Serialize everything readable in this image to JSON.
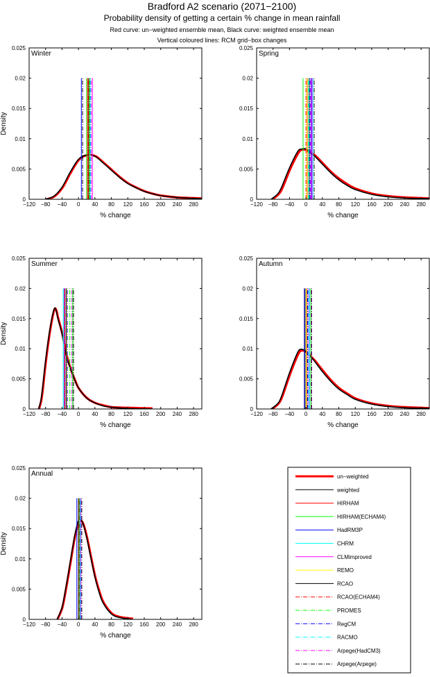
{
  "header": {
    "title": "Bradford A2 scenario (2071−2100)",
    "subtitle": "Probability density of getting a certain % change in mean rainfall",
    "note1": "Red curve: un−weighted ensemble mean, Black curve: weighted ensemble mean",
    "note2": "Vertical coloured lines: RCM grid−box changes"
  },
  "chart_data": {
    "type": "line",
    "xlabel": "% change",
    "ylabel": "Density",
    "xlim": [
      -120,
      300
    ],
    "ylim": [
      0,
      0.025
    ],
    "xticks": [
      -120,
      -80,
      -40,
      0,
      40,
      80,
      120,
      160,
      200,
      240,
      280
    ],
    "yticks": [
      0,
      0.005,
      0.01,
      0.015,
      0.02,
      0.025
    ],
    "ytick_labels": [
      "0",
      "0.005",
      "0.01",
      "0.015",
      "0.02",
      "0.025"
    ],
    "model_line_height": 0.02,
    "curve_colors": {
      "unweighted": "#ff0000",
      "weighted": "#000000"
    },
    "models": [
      {
        "name": "HIRHAM",
        "color": "#ff0000",
        "style": "solid"
      },
      {
        "name": "HIRHAM(ECHAM4)",
        "color": "#00ff00",
        "style": "solid"
      },
      {
        "name": "HadRM3P",
        "color": "#0000ff",
        "style": "solid"
      },
      {
        "name": "CHRM",
        "color": "#00ffff",
        "style": "solid"
      },
      {
        "name": "CLMimproved",
        "color": "#ff00ff",
        "style": "solid"
      },
      {
        "name": "REMO",
        "color": "#ffff00",
        "style": "solid"
      },
      {
        "name": "RCAO",
        "color": "#000000",
        "style": "solid"
      },
      {
        "name": "RCAO(ECHAM4)",
        "color": "#ff0000",
        "style": "dashdot"
      },
      {
        "name": "PROMES",
        "color": "#00ff00",
        "style": "dashdot"
      },
      {
        "name": "RegCM",
        "color": "#0000ff",
        "style": "dashdot"
      },
      {
        "name": "RACMO",
        "color": "#00ffff",
        "style": "dashdot"
      },
      {
        "name": "Arpege(HadCM3)",
        "color": "#ff00ff",
        "style": "dashdot"
      },
      {
        "name": "Arpege(Arpege)",
        "color": "#000000",
        "style": "dashdot"
      }
    ],
    "legend": {
      "placement": "bottom-right",
      "entries": [
        "un−weighted",
        "weighted",
        "HIRHAM",
        "HIRHAM(ECHAM4)",
        "HadRM3P",
        "CHRM",
        "CLMimproved",
        "REMO",
        "RCAO",
        "RCAO(ECHAM4)",
        "PROMES",
        "RegCM",
        "RACMO",
        "Arpege(HadCM3)",
        "Arpege(Arpege)"
      ]
    },
    "panels": [
      {
        "label": "Winter",
        "weighted": [
          [
            -80,
            0
          ],
          [
            -60,
            0.0005
          ],
          [
            -40,
            0.002
          ],
          [
            -20,
            0.0045
          ],
          [
            0,
            0.0066
          ],
          [
            20,
            0.0073
          ],
          [
            40,
            0.0071
          ],
          [
            60,
            0.006
          ],
          [
            80,
            0.0048
          ],
          [
            100,
            0.0036
          ],
          [
            120,
            0.0026
          ],
          [
            140,
            0.0019
          ],
          [
            160,
            0.0013
          ],
          [
            180,
            0.0009
          ],
          [
            200,
            0.0006
          ],
          [
            240,
            0.0003
          ],
          [
            280,
            0.00015
          ],
          [
            300,
            0.0001
          ]
        ],
        "unweighted": [
          [
            -78,
            0
          ],
          [
            -58,
            0.0005
          ],
          [
            -38,
            0.002
          ],
          [
            -18,
            0.0045
          ],
          [
            2,
            0.0066
          ],
          [
            22,
            0.0073
          ],
          [
            42,
            0.0071
          ],
          [
            62,
            0.006
          ],
          [
            82,
            0.0048
          ],
          [
            102,
            0.0036
          ],
          [
            122,
            0.0026
          ],
          [
            142,
            0.0019
          ],
          [
            162,
            0.0013
          ],
          [
            182,
            0.0009
          ],
          [
            202,
            0.0006
          ],
          [
            242,
            0.0003
          ],
          [
            280,
            0.0002
          ],
          [
            300,
            0.00015
          ]
        ],
        "model_changes": [
          22,
          20,
          7,
          28,
          34,
          26,
          25,
          24,
          27,
          30,
          29,
          31,
          10
        ]
      },
      {
        "label": "Spring",
        "weighted": [
          [
            -85,
            0
          ],
          [
            -70,
            0.0008
          ],
          [
            -60,
            0.0019
          ],
          [
            -40,
            0.0052
          ],
          [
            -20,
            0.0079
          ],
          [
            -10,
            0.0083
          ],
          [
            0,
            0.0083
          ],
          [
            10,
            0.0077
          ],
          [
            20,
            0.0072
          ],
          [
            40,
            0.0058
          ],
          [
            60,
            0.0044
          ],
          [
            80,
            0.0032
          ],
          [
            100,
            0.0023
          ],
          [
            120,
            0.0016
          ],
          [
            160,
            0.0008
          ],
          [
            200,
            0.0004
          ],
          [
            240,
            0.0002
          ],
          [
            300,
            0.0001
          ]
        ],
        "unweighted": [
          [
            -82,
            0
          ],
          [
            -67,
            0.0008
          ],
          [
            -57,
            0.0019
          ],
          [
            -37,
            0.0052
          ],
          [
            -17,
            0.0078
          ],
          [
            -7,
            0.0082
          ],
          [
            3,
            0.0081
          ],
          [
            13,
            0.0076
          ],
          [
            23,
            0.0072
          ],
          [
            43,
            0.0058
          ],
          [
            63,
            0.0044
          ],
          [
            83,
            0.0033
          ],
          [
            103,
            0.0024
          ],
          [
            123,
            0.0017
          ],
          [
            163,
            0.0009
          ],
          [
            203,
            0.0005
          ],
          [
            243,
            0.0003
          ],
          [
            300,
            0.00015
          ]
        ],
        "model_changes": [
          3,
          -7,
          13,
          17,
          15,
          2,
          8,
          0,
          6,
          10,
          7,
          12,
          20
        ]
      },
      {
        "label": "Summer",
        "weighted": [
          [
            -97,
            0
          ],
          [
            -90,
            0.002
          ],
          [
            -80,
            0.008
          ],
          [
            -70,
            0.013
          ],
          [
            -60,
            0.0164
          ],
          [
            -55,
            0.0165
          ],
          [
            -50,
            0.015
          ],
          [
            -40,
            0.0125
          ],
          [
            -30,
            0.009
          ],
          [
            -20,
            0.0068
          ],
          [
            -10,
            0.005
          ],
          [
            0,
            0.0035
          ],
          [
            20,
            0.0018
          ],
          [
            40,
            0.001
          ],
          [
            60,
            0.0005
          ],
          [
            80,
            0.0003
          ],
          [
            120,
            0.0001
          ],
          [
            180,
            0
          ]
        ],
        "unweighted": [
          [
            -96,
            0
          ],
          [
            -89,
            0.002
          ],
          [
            -79,
            0.008
          ],
          [
            -69,
            0.013
          ],
          [
            -59,
            0.0164
          ],
          [
            -54,
            0.0164
          ],
          [
            -49,
            0.015
          ],
          [
            -39,
            0.0124
          ],
          [
            -29,
            0.009
          ],
          [
            -19,
            0.0067
          ],
          [
            -9,
            0.0049
          ],
          [
            1,
            0.0034
          ],
          [
            21,
            0.0018
          ],
          [
            41,
            0.001
          ],
          [
            61,
            0.0006
          ],
          [
            81,
            0.0003
          ],
          [
            121,
            0.0002
          ],
          [
            180,
            0.0001
          ]
        ],
        "model_changes": [
          -35,
          -14,
          -33,
          -37,
          -34,
          -29,
          -30,
          -33,
          -21,
          -27,
          -36,
          -16,
          -12
        ]
      },
      {
        "label": "Autumn",
        "weighted": [
          [
            -85,
            0
          ],
          [
            -70,
            0.0008
          ],
          [
            -60,
            0.002
          ],
          [
            -40,
            0.006
          ],
          [
            -20,
            0.0094
          ],
          [
            -10,
            0.0099
          ],
          [
            0,
            0.0095
          ],
          [
            10,
            0.0088
          ],
          [
            20,
            0.008
          ],
          [
            40,
            0.0062
          ],
          [
            60,
            0.0046
          ],
          [
            80,
            0.0033
          ],
          [
            100,
            0.0024
          ],
          [
            120,
            0.0016
          ],
          [
            160,
            0.0008
          ],
          [
            200,
            0.0004
          ],
          [
            240,
            0.0002
          ],
          [
            300,
            0.0001
          ]
        ],
        "unweighted": [
          [
            -83,
            0
          ],
          [
            -68,
            0.0008
          ],
          [
            -58,
            0.002
          ],
          [
            -38,
            0.0059
          ],
          [
            -18,
            0.0092
          ],
          [
            -8,
            0.0097
          ],
          [
            2,
            0.0094
          ],
          [
            12,
            0.0087
          ],
          [
            22,
            0.008
          ],
          [
            42,
            0.0063
          ],
          [
            62,
            0.0047
          ],
          [
            82,
            0.0034
          ],
          [
            102,
            0.0025
          ],
          [
            122,
            0.0017
          ],
          [
            162,
            0.0009
          ],
          [
            202,
            0.0005
          ],
          [
            242,
            0.0003
          ],
          [
            300,
            0.00015
          ]
        ],
        "model_changes": [
          2,
          12,
          -4,
          9,
          7,
          1,
          -2,
          3,
          5,
          4,
          6,
          14,
          13
        ]
      },
      {
        "label": "Annual",
        "weighted": [
          [
            -52,
            0
          ],
          [
            -40,
            0.002
          ],
          [
            -30,
            0.0055
          ],
          [
            -20,
            0.0095
          ],
          [
            -10,
            0.0135
          ],
          [
            0,
            0.0163
          ],
          [
            10,
            0.016
          ],
          [
            20,
            0.0135
          ],
          [
            30,
            0.0102
          ],
          [
            40,
            0.007
          ],
          [
            50,
            0.0045
          ],
          [
            60,
            0.0027
          ],
          [
            80,
            0.0009
          ],
          [
            100,
            0.0003
          ],
          [
            130,
            0
          ]
        ],
        "unweighted": [
          [
            -51,
            0
          ],
          [
            -39,
            0.002
          ],
          [
            -29,
            0.0055
          ],
          [
            -19,
            0.0095
          ],
          [
            -9,
            0.0135
          ],
          [
            1,
            0.0161
          ],
          [
            11,
            0.0159
          ],
          [
            21,
            0.0135
          ],
          [
            31,
            0.0102
          ],
          [
            41,
            0.007
          ],
          [
            51,
            0.0046
          ],
          [
            61,
            0.0028
          ],
          [
            81,
            0.001
          ],
          [
            101,
            0.0004
          ],
          [
            133,
            0.0001
          ]
        ],
        "model_changes": [
          2,
          4,
          -4,
          3,
          5,
          1,
          0,
          2,
          3,
          4,
          5,
          7,
          8
        ]
      }
    ]
  }
}
